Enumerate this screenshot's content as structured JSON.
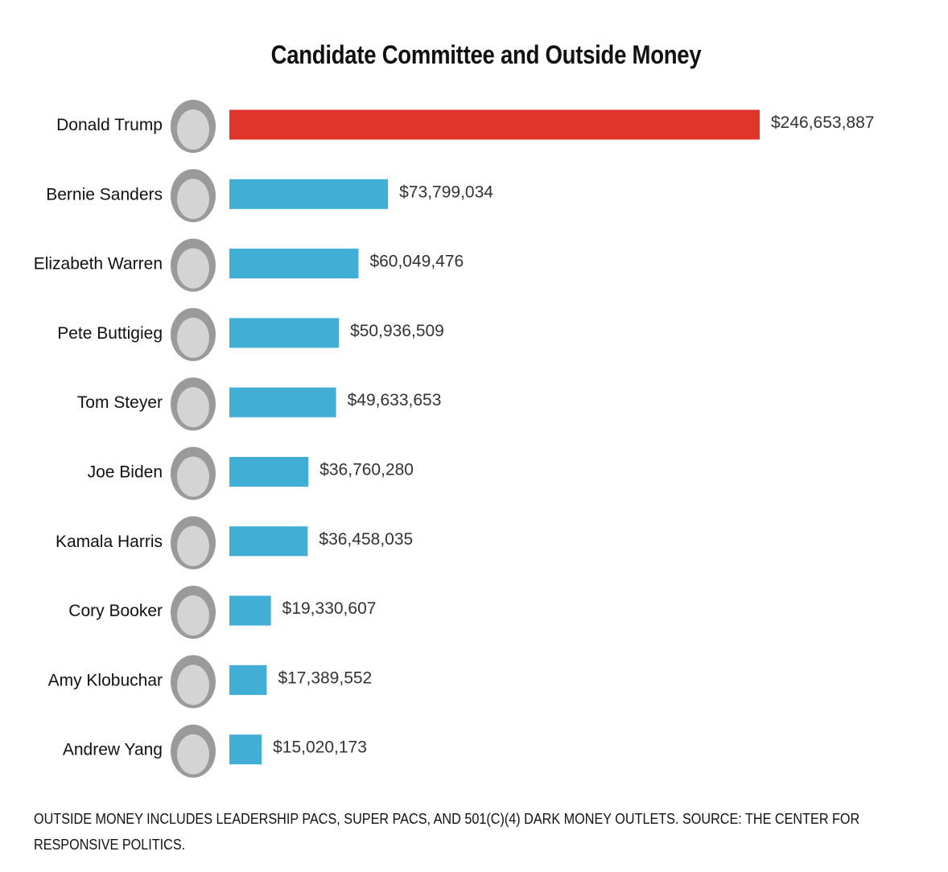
{
  "chart_data": {
    "type": "bar",
    "orientation": "horizontal",
    "title": "Candidate Committee and Outside Money",
    "categories": [
      "Donald Trump",
      "Bernie Sanders",
      "Elizabeth Warren",
      "Pete Buttigieg",
      "Tom Steyer",
      "Joe Biden",
      "Kamala Harris",
      "Cory Booker",
      "Amy Klobuchar",
      "Andrew Yang"
    ],
    "values": [
      246653887,
      73799034,
      60049476,
      50936509,
      49633653,
      36760280,
      36458035,
      19330607,
      17389552,
      15020173
    ],
    "labels": [
      "$246,653,887",
      "$73,799,034",
      "$60,049,476",
      "$50,936,509",
      "$49,633,653",
      "$36,760,280",
      "$36,458,035",
      "$19,330,607",
      "$17,389,552",
      "$15,020,173"
    ],
    "colors": [
      "#e0352b",
      "#41aed6",
      "#41aed6",
      "#41aed6",
      "#41aed6",
      "#41aed6",
      "#41aed6",
      "#41aed6",
      "#41aed6",
      "#41aed6"
    ],
    "xlabel": "",
    "ylabel": "",
    "grid": false,
    "legend": "none",
    "candidate_photos": true
  },
  "footnote": "Outside money includes leadership PACs, super PACs, and 501(c)(4) dark money outlets. Source: The Center for Responsive Politics."
}
